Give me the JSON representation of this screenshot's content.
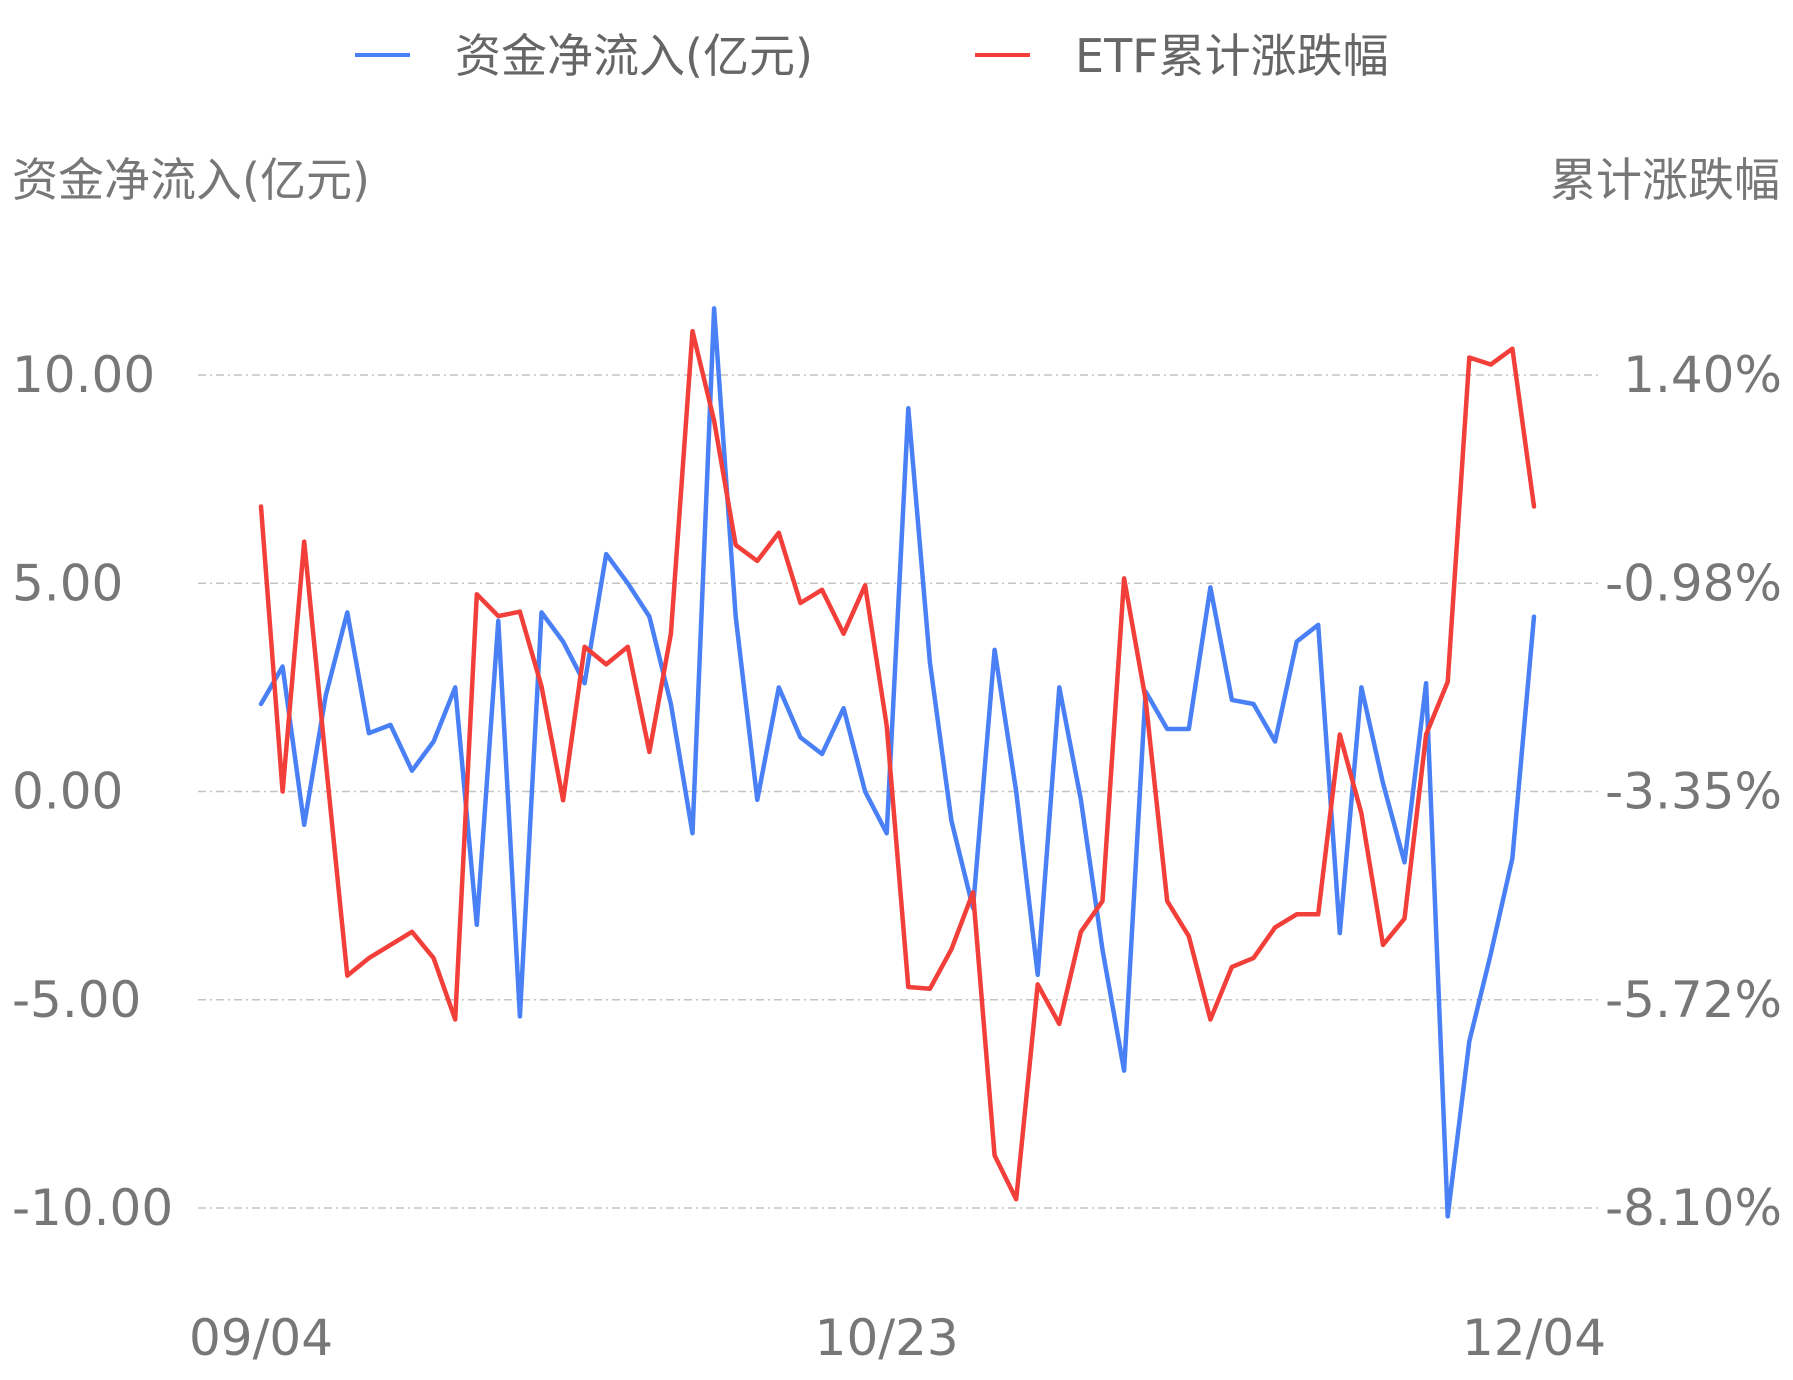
{
  "chart_data": {
    "type": "line",
    "legend_position": "top-center",
    "grid": true,
    "y_left_label": "资金净流入(亿元)",
    "y_right_label": "累计涨跌幅",
    "y_left_ticks": [
      "10.00",
      "5.00",
      "0.00",
      "-5.00",
      "-10.00"
    ],
    "y_right_ticks": [
      "1.40%",
      "-0.98%",
      "-3.35%",
      "-5.72%",
      "-8.10%"
    ],
    "y_left_lim": [
      -10,
      10
    ],
    "y_right_lim": [
      -8.1,
      1.4
    ],
    "x_ticks": [
      {
        "label": "09/04",
        "index": 0
      },
      {
        "label": "10/23",
        "index": 29
      },
      {
        "label": "12/04",
        "index": 59
      }
    ],
    "series": [
      {
        "name": "资金净流入(亿元)",
        "axis": "left",
        "color": "#4a80f5",
        "values": [
          2.1,
          3.0,
          -0.8,
          2.3,
          4.3,
          1.4,
          1.6,
          0.5,
          1.2,
          2.5,
          -3.2,
          4.1,
          -5.4,
          4.3,
          3.6,
          2.6,
          5.7,
          5.0,
          4.2,
          2.1,
          -1.0,
          11.6,
          4.2,
          -0.2,
          2.5,
          1.3,
          0.9,
          2.0,
          0.0,
          -1.0,
          9.2,
          3.1,
          -0.7,
          -2.8,
          3.4,
          0.0,
          -4.4,
          2.5,
          -0.2,
          -3.8,
          -6.7,
          2.4,
          1.5,
          1.5,
          4.9,
          2.2,
          2.1,
          1.2,
          3.6,
          4.0,
          -3.4,
          2.5,
          0.2,
          -1.7,
          2.6,
          -10.2,
          -6.0,
          -3.9,
          -1.6,
          4.2
        ]
      },
      {
        "name": "ETF累计涨跌幅",
        "axis": "right",
        "color": "#f23f3a",
        "values": [
          -0.1,
          -3.35,
          -0.5,
          -3.0,
          -5.45,
          -5.25,
          -5.1,
          -4.95,
          -5.25,
          -5.95,
          -1.1,
          -1.35,
          -1.3,
          -2.15,
          -3.45,
          -1.7,
          -1.9,
          -1.7,
          -2.9,
          -1.55,
          1.9,
          0.88,
          -0.54,
          -0.72,
          -0.4,
          -1.2,
          -1.05,
          -1.55,
          -1.0,
          -2.6,
          -5.58,
          -5.6,
          -5.15,
          -4.5,
          -7.5,
          -8.0,
          -5.55,
          -6.0,
          -4.95,
          -4.6,
          -0.92,
          -2.3,
          -4.6,
          -5.0,
          -5.95,
          -5.35,
          -5.25,
          -4.9,
          -4.75,
          -4.75,
          -2.7,
          -3.6,
          -5.1,
          -4.8,
          -2.7,
          -2.1,
          1.6,
          1.52,
          1.7,
          -0.1
        ]
      }
    ]
  }
}
